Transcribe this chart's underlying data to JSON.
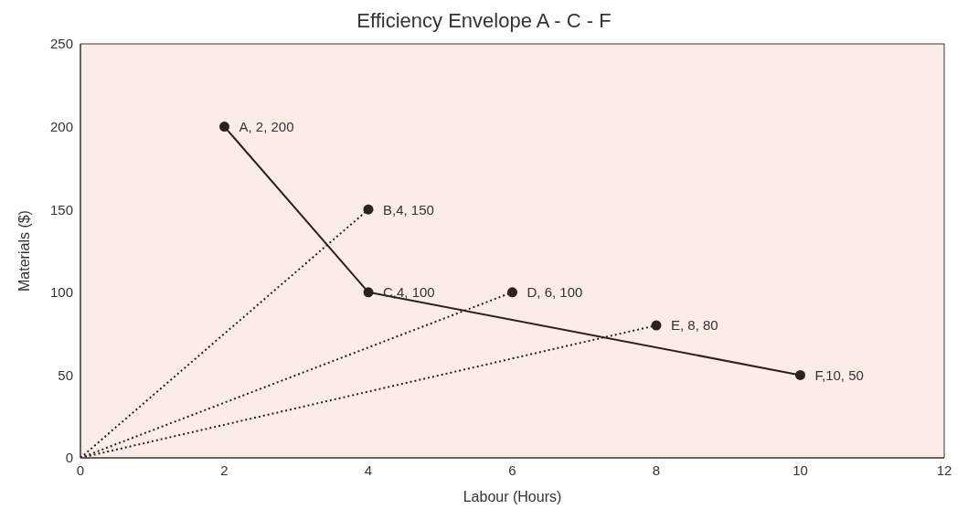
{
  "chart_data": {
    "type": "line",
    "title": "Efficiency Envelope A - C - F",
    "xlabel": "Labour (Hours)",
    "ylabel": "Materials ($)",
    "xlim": [
      0,
      12
    ],
    "xticks": [
      0,
      2,
      4,
      6,
      8,
      10,
      12
    ],
    "ylim": [
      0,
      250
    ],
    "yticks": [
      0,
      50,
      100,
      150,
      200,
      250
    ],
    "series": [
      {
        "color": "#2b2220",
        "x": [
          2,
          4,
          10
        ],
        "values": [
          200,
          100,
          50
        ],
        "marker": "circle",
        "line_style": "solid"
      },
      {
        "type": "line",
        "color": "#2b2220",
        "x": [
          0,
          4
        ],
        "values": [
          0,
          150
        ],
        "marker": "none",
        "line_style": "dotted"
      },
      {
        "type": "line",
        "color": "#2b2220",
        "x": [
          0,
          6
        ],
        "values": [
          0,
          100
        ],
        "marker": "none",
        "line_style": "dotted"
      },
      {
        "type": "line",
        "color": "#2b2220",
        "x": [
          0,
          8
        ],
        "values": [
          0,
          80
        ],
        "marker": "none",
        "line_style": "dotted"
      },
      {
        "type": "scatter",
        "color": "#2b2220",
        "x": [
          4,
          6,
          8
        ],
        "values": [
          150,
          100,
          80
        ],
        "marker": "circle"
      }
    ],
    "annotations": [
      {
        "text": "A, 2, 200",
        "x": 2,
        "y": 200
      },
      {
        "text": "B,4, 150",
        "x": 4,
        "y": 150
      },
      {
        "text": "C,4, 100",
        "x": 4,
        "y": 100
      },
      {
        "text": "D, 6, 100",
        "x": 6,
        "y": 100
      },
      {
        "text": "E, 8, 80",
        "x": 8,
        "y": 80
      },
      {
        "text": "F,10, 50",
        "x": 10,
        "y": 50
      }
    ]
  }
}
